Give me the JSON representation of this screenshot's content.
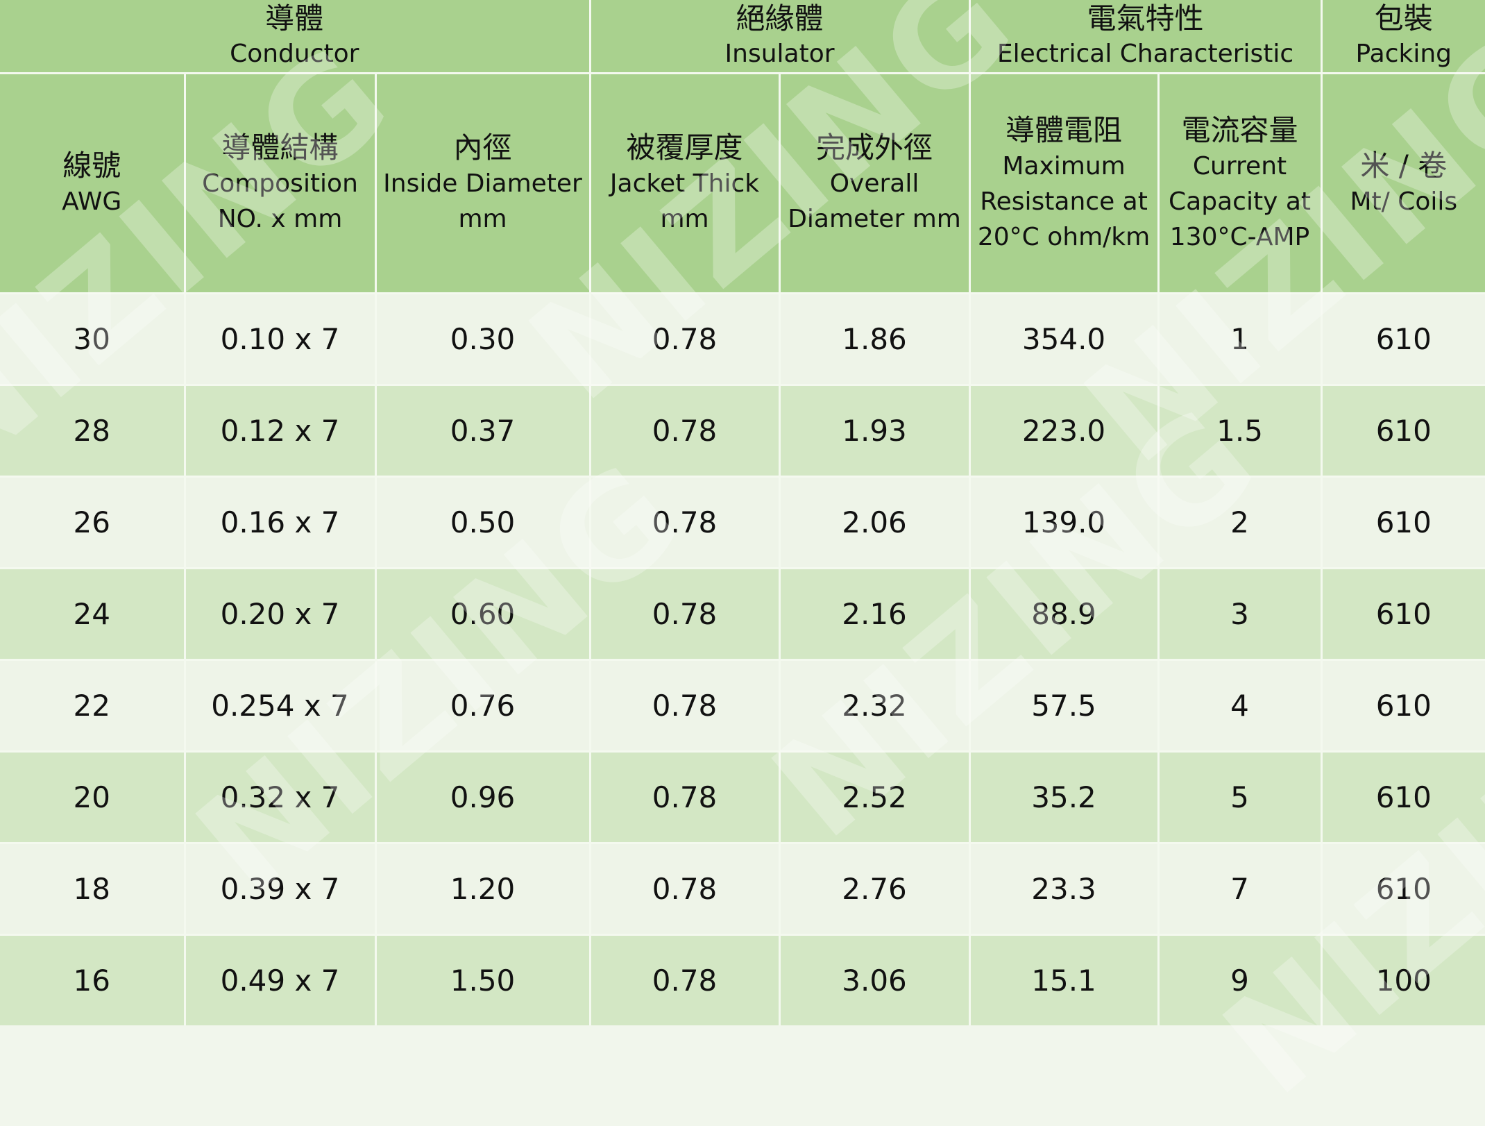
{
  "groups": {
    "conductor": {
      "zh": "導體",
      "en": "Conductor"
    },
    "insulator": {
      "zh": "絕緣體",
      "en": "Insulator"
    },
    "electrical": {
      "zh": "電氣特性",
      "en": "Electrical Characteristic"
    },
    "packing": {
      "zh": "包裝",
      "en": "Packing"
    }
  },
  "columns": {
    "awg": {
      "zh": "線號",
      "en": "AWG"
    },
    "composition": {
      "zh": "導體結構",
      "en1": "Composition",
      "en2": "NO. x mm"
    },
    "inside_diameter": {
      "zh": "內徑",
      "en1": "Inside Diameter",
      "en2": "mm"
    },
    "jacket_thick": {
      "zh": "被覆厚度",
      "en1": "Jacket Thick",
      "en2": "mm"
    },
    "overall_diameter": {
      "zh": "完成外徑",
      "en1": "Overall",
      "en2": "Diameter mm"
    },
    "resistance": {
      "zh": "導體電阻",
      "en1": "Maximum",
      "en2": "Resistance at",
      "en3": "20°C ohm/km"
    },
    "current": {
      "zh": "電流容量",
      "en1": "Current",
      "en2": "Capacity at",
      "en3": "130°C-AMP"
    },
    "coils": {
      "zh": "米 / 卷",
      "en": "Mt/ Coils"
    }
  },
  "rows": [
    {
      "awg": "30",
      "composition": "0.10 x 7",
      "inside_diameter": "0.30",
      "jacket_thick": "0.78",
      "overall_diameter": "1.86",
      "resistance": "354.0",
      "current": "1",
      "coils": "610"
    },
    {
      "awg": "28",
      "composition": "0.12 x 7",
      "inside_diameter": "0.37",
      "jacket_thick": "0.78",
      "overall_diameter": "1.93",
      "resistance": "223.0",
      "current": "1.5",
      "coils": "610"
    },
    {
      "awg": "26",
      "composition": "0.16 x 7",
      "inside_diameter": "0.50",
      "jacket_thick": "0.78",
      "overall_diameter": "2.06",
      "resistance": "139.0",
      "current": "2",
      "coils": "610"
    },
    {
      "awg": "24",
      "composition": "0.20 x 7",
      "inside_diameter": "0.60",
      "jacket_thick": "0.78",
      "overall_diameter": "2.16",
      "resistance": "88.9",
      "current": "3",
      "coils": "610"
    },
    {
      "awg": "22",
      "composition": "0.254 x 7",
      "inside_diameter": "0.76",
      "jacket_thick": "0.78",
      "overall_diameter": "2.32",
      "resistance": "57.5",
      "current": "4",
      "coils": "610"
    },
    {
      "awg": "20",
      "composition": "0.32 x 7",
      "inside_diameter": "0.96",
      "jacket_thick": "0.78",
      "overall_diameter": "2.52",
      "resistance": "35.2",
      "current": "5",
      "coils": "610"
    },
    {
      "awg": "18",
      "composition": "0.39 x 7",
      "inside_diameter": "1.20",
      "jacket_thick": "0.78",
      "overall_diameter": "2.76",
      "resistance": "23.3",
      "current": "7",
      "coils": "610"
    },
    {
      "awg": "16",
      "composition": "0.49 x 7",
      "inside_diameter": "1.50",
      "jacket_thick": "0.78",
      "overall_diameter": "3.06",
      "resistance": "15.1",
      "current": "9",
      "coils": "100"
    }
  ],
  "watermark": "NIZING",
  "colors": {
    "header_green": "#a9d18e",
    "row_light": "#eef4e8",
    "row_green": "#d3e7c4",
    "grid_line": "#f4f9ef"
  }
}
